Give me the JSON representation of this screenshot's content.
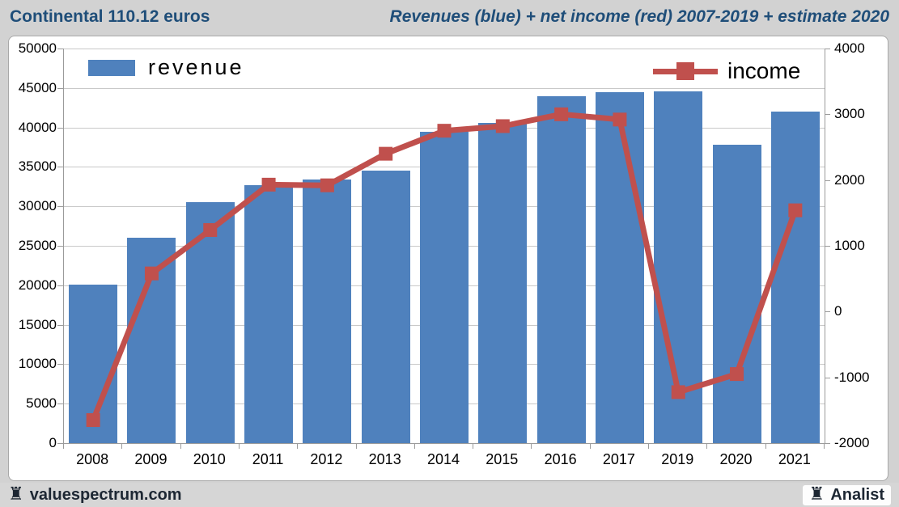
{
  "header": {
    "left_title": "Continental 110.12 euros",
    "right_title": "Revenues (blue) + net income (red) 2007-2019 + estimate 2020"
  },
  "footer": {
    "left_brand": "valuespectrum.com",
    "right_brand": "Analist",
    "rook_icon": "♜"
  },
  "chart_data": {
    "type": "bar",
    "subtype": "bar+line dual axis",
    "title": "Revenues (blue) + net income (red) 2007-2019 + estimate 2020",
    "categories": [
      "2008",
      "2009",
      "2010",
      "2011",
      "2012",
      "2013",
      "2014",
      "2015",
      "2016",
      "2017",
      "2019",
      "2020",
      "2021"
    ],
    "series": [
      {
        "name": "revenue",
        "type": "bar",
        "axis": "left",
        "color": "#4f81bd",
        "values": [
          20100,
          26000,
          30500,
          32700,
          33400,
          34500,
          39400,
          40600,
          44000,
          44500,
          44600,
          37800,
          42000
        ]
      },
      {
        "name": "income",
        "type": "line",
        "axis": "right",
        "color": "#c0504d",
        "values": [
          -1650,
          580,
          1240,
          1930,
          1920,
          2400,
          2750,
          2820,
          3000,
          2920,
          -1225,
          -950,
          1540
        ]
      }
    ],
    "left_axis": {
      "min": 0,
      "max": 50000,
      "step": 5000,
      "tick_labels": [
        "50000",
        "45000",
        "40000",
        "35000",
        "30000",
        "25000",
        "20000",
        "15000",
        "10000",
        "5000",
        "0"
      ],
      "tick_values": [
        50000,
        45000,
        40000,
        35000,
        30000,
        25000,
        20000,
        15000,
        10000,
        5000,
        0
      ]
    },
    "right_axis": {
      "min": -2000,
      "max": 4000,
      "step": 1000,
      "tick_labels": [
        "4000",
        "3000",
        "2000",
        "1000",
        "0",
        "-1000",
        "-2000"
      ],
      "tick_values": [
        4000,
        3000,
        2000,
        1000,
        0,
        -1000,
        -2000
      ]
    },
    "grid": true,
    "legend_position": "top-inside"
  },
  "colors": {
    "bar": "#4f81bd",
    "line": "#c0504d",
    "title_text": "#1f4e79",
    "grid": "#c9c9c9",
    "axis": "#9b9b9b",
    "page_background": "#d2d2d2",
    "plot_background": "#ffffff",
    "footer_text": "#1d2733"
  }
}
